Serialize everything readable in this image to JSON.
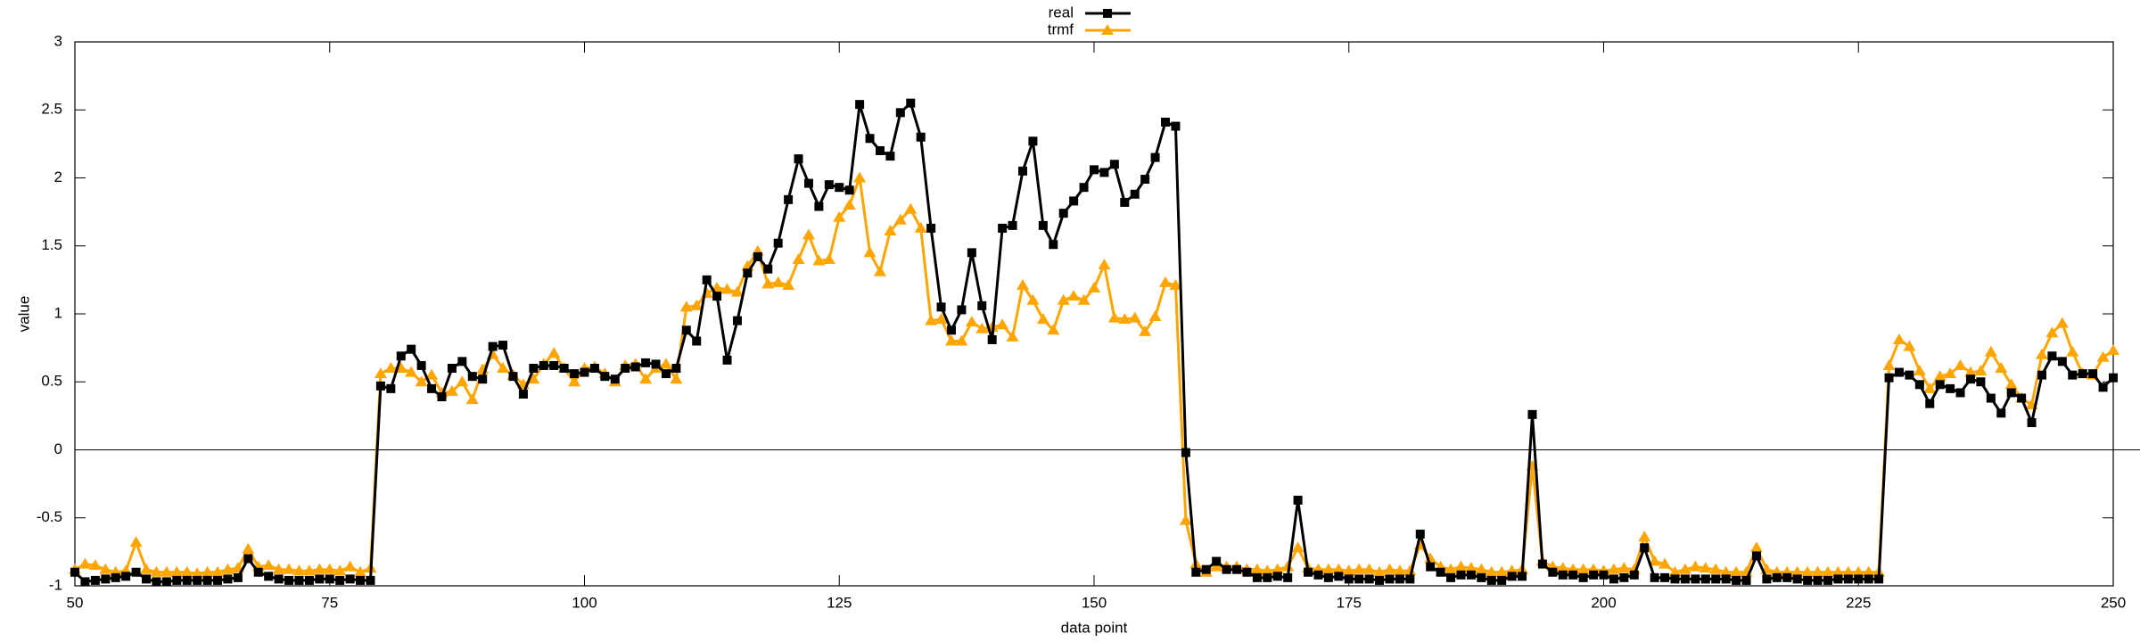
{
  "chart_data": {
    "type": "line",
    "xlabel": "data point",
    "ylabel": "value",
    "xlim": [
      50,
      250
    ],
    "xticks": [
      50,
      75,
      100,
      125,
      150,
      175,
      200,
      225,
      250
    ],
    "ylim": [
      -1,
      3
    ],
    "yticks": [
      -1,
      -0.5,
      0,
      0.5,
      1,
      1.5,
      2,
      2.5,
      3
    ],
    "zero_axis": true,
    "legend": "top",
    "x": [
      50,
      51,
      52,
      53,
      54,
      55,
      56,
      57,
      58,
      59,
      60,
      61,
      62,
      63,
      64,
      65,
      66,
      67,
      68,
      69,
      70,
      71,
      72,
      73,
      74,
      75,
      76,
      77,
      78,
      79,
      80,
      81,
      82,
      83,
      84,
      85,
      86,
      87,
      88,
      89,
      90,
      91,
      92,
      93,
      94,
      95,
      96,
      97,
      98,
      99,
      100,
      101,
      102,
      103,
      104,
      105,
      106,
      107,
      108,
      109,
      110,
      111,
      112,
      113,
      114,
      115,
      116,
      117,
      118,
      119,
      120,
      121,
      122,
      123,
      124,
      125,
      126,
      127,
      128,
      129,
      130,
      131,
      132,
      133,
      134,
      135,
      136,
      137,
      138,
      139,
      140,
      141,
      142,
      143,
      144,
      145,
      146,
      147,
      148,
      149,
      150,
      151,
      152,
      153,
      154,
      155,
      156,
      157,
      158,
      159,
      160,
      161,
      162,
      163,
      164,
      165,
      166,
      167,
      168,
      169,
      170,
      171,
      172,
      173,
      174,
      175,
      176,
      177,
      178,
      179,
      180,
      181,
      182,
      183,
      184,
      185,
      186,
      187,
      188,
      189,
      190,
      191,
      192,
      193,
      194,
      195,
      196,
      197,
      198,
      199,
      200,
      201,
      202,
      203,
      204,
      205,
      206,
      207,
      208,
      209,
      210,
      211,
      212,
      213,
      214,
      215,
      216,
      217,
      218,
      219,
      220,
      221,
      222,
      223,
      224,
      225,
      226,
      227,
      228,
      229,
      230,
      231,
      232,
      233,
      234,
      235,
      236,
      237,
      238,
      239,
      240,
      241,
      242,
      243,
      244,
      245,
      246,
      247,
      248,
      249,
      250
    ],
    "series": [
      {
        "name": "real",
        "color": "#000000",
        "marker": "square",
        "values": [
          -0.9,
          -0.97,
          -0.96,
          -0.95,
          -0.94,
          -0.93,
          -0.9,
          -0.95,
          -0.97,
          -0.97,
          -0.96,
          -0.96,
          -0.96,
          -0.96,
          -0.96,
          -0.95,
          -0.94,
          -0.8,
          -0.9,
          -0.93,
          -0.95,
          -0.96,
          -0.96,
          -0.96,
          -0.95,
          -0.95,
          -0.96,
          -0.95,
          -0.96,
          -0.96,
          0.47,
          0.45,
          0.69,
          0.74,
          0.62,
          0.45,
          0.39,
          0.6,
          0.65,
          0.54,
          0.52,
          0.76,
          0.77,
          0.54,
          0.41,
          0.6,
          0.62,
          0.62,
          0.6,
          0.56,
          0.57,
          0.6,
          0.54,
          0.52,
          0.6,
          0.61,
          0.64,
          0.63,
          0.56,
          0.6,
          0.88,
          0.8,
          1.25,
          1.13,
          0.66,
          0.95,
          1.3,
          1.42,
          1.33,
          1.52,
          1.84,
          2.14,
          1.96,
          1.79,
          1.95,
          1.93,
          1.91,
          2.54,
          2.29,
          2.2,
          2.16,
          2.48,
          2.55,
          2.3,
          1.63,
          1.05,
          0.88,
          1.03,
          1.45,
          1.06,
          0.81,
          1.63,
          1.65,
          2.05,
          2.27,
          1.65,
          1.51,
          1.74,
          1.83,
          1.93,
          2.06,
          2.04,
          2.1,
          1.82,
          1.88,
          1.99,
          2.15,
          2.41,
          2.38,
          -0.02,
          -0.9,
          -0.88,
          -0.82,
          -0.88,
          -0.88,
          -0.9,
          -0.94,
          -0.94,
          -0.93,
          -0.94,
          -0.37,
          -0.9,
          -0.92,
          -0.94,
          -0.93,
          -0.95,
          -0.95,
          -0.95,
          -0.96,
          -0.95,
          -0.95,
          -0.95,
          -0.62,
          -0.86,
          -0.9,
          -0.94,
          -0.92,
          -0.92,
          -0.94,
          -0.96,
          -0.96,
          -0.93,
          -0.93,
          0.26,
          -0.84,
          -0.9,
          -0.92,
          -0.92,
          -0.94,
          -0.92,
          -0.92,
          -0.95,
          -0.94,
          -0.92,
          -0.72,
          -0.94,
          -0.94,
          -0.95,
          -0.95,
          -0.95,
          -0.95,
          -0.95,
          -0.95,
          -0.96,
          -0.96,
          -0.78,
          -0.95,
          -0.94,
          -0.94,
          -0.95,
          -0.96,
          -0.96,
          -0.96,
          -0.95,
          -0.95,
          -0.95,
          -0.95,
          -0.95,
          0.53,
          0.57,
          0.55,
          0.48,
          0.34,
          0.48,
          0.45,
          0.42,
          0.52,
          0.5,
          0.38,
          0.27,
          0.42,
          0.38,
          0.2,
          0.55,
          0.69,
          0.65,
          0.55,
          0.56,
          0.56,
          0.46,
          0.53
        ]
      },
      {
        "name": "trmf",
        "color": "#ffa500",
        "marker": "triangle",
        "values": [
          -0.88,
          -0.84,
          -0.85,
          -0.88,
          -0.9,
          -0.89,
          -0.68,
          -0.88,
          -0.9,
          -0.9,
          -0.9,
          -0.9,
          -0.91,
          -0.9,
          -0.9,
          -0.88,
          -0.87,
          -0.73,
          -0.86,
          -0.85,
          -0.88,
          -0.88,
          -0.89,
          -0.89,
          -0.88,
          -0.88,
          -0.89,
          -0.86,
          -0.9,
          -0.87,
          0.56,
          0.6,
          0.6,
          0.57,
          0.5,
          0.55,
          0.42,
          0.43,
          0.5,
          0.37,
          0.59,
          0.7,
          0.6,
          0.55,
          0.48,
          0.52,
          0.63,
          0.71,
          0.6,
          0.5,
          0.6,
          0.61,
          0.56,
          0.5,
          0.62,
          0.63,
          0.52,
          0.6,
          0.63,
          0.52,
          1.05,
          1.06,
          1.15,
          1.19,
          1.18,
          1.16,
          1.35,
          1.46,
          1.22,
          1.23,
          1.21,
          1.4,
          1.58,
          1.39,
          1.4,
          1.71,
          1.8,
          2.0,
          1.45,
          1.31,
          1.61,
          1.69,
          1.77,
          1.63,
          0.95,
          0.96,
          0.8,
          0.8,
          0.94,
          0.89,
          0.9,
          0.92,
          0.83,
          1.21,
          1.1,
          0.96,
          0.88,
          1.1,
          1.13,
          1.1,
          1.19,
          1.36,
          0.97,
          0.96,
          0.97,
          0.87,
          0.98,
          1.23,
          1.21,
          -0.52,
          -0.84,
          -0.9,
          -0.86,
          -0.86,
          -0.86,
          -0.88,
          -0.88,
          -0.89,
          -0.88,
          -0.86,
          -0.72,
          -0.87,
          -0.88,
          -0.88,
          -0.88,
          -0.89,
          -0.88,
          -0.88,
          -0.9,
          -0.88,
          -0.89,
          -0.89,
          -0.7,
          -0.8,
          -0.86,
          -0.88,
          -0.86,
          -0.87,
          -0.88,
          -0.9,
          -0.9,
          -0.89,
          -0.88,
          -0.12,
          -0.82,
          -0.86,
          -0.87,
          -0.88,
          -0.88,
          -0.88,
          -0.89,
          -0.88,
          -0.87,
          -0.88,
          -0.64,
          -0.82,
          -0.84,
          -0.9,
          -0.88,
          -0.86,
          -0.87,
          -0.88,
          -0.9,
          -0.9,
          -0.9,
          -0.72,
          -0.88,
          -0.9,
          -0.9,
          -0.9,
          -0.9,
          -0.9,
          -0.9,
          -0.9,
          -0.9,
          -0.9,
          -0.9,
          -0.9,
          0.62,
          0.81,
          0.76,
          0.58,
          0.45,
          0.54,
          0.56,
          0.62,
          0.57,
          0.58,
          0.72,
          0.6,
          0.48,
          0.38,
          0.33,
          0.7,
          0.86,
          0.93,
          0.72,
          0.56,
          0.55,
          0.68,
          0.73
        ]
      }
    ]
  }
}
